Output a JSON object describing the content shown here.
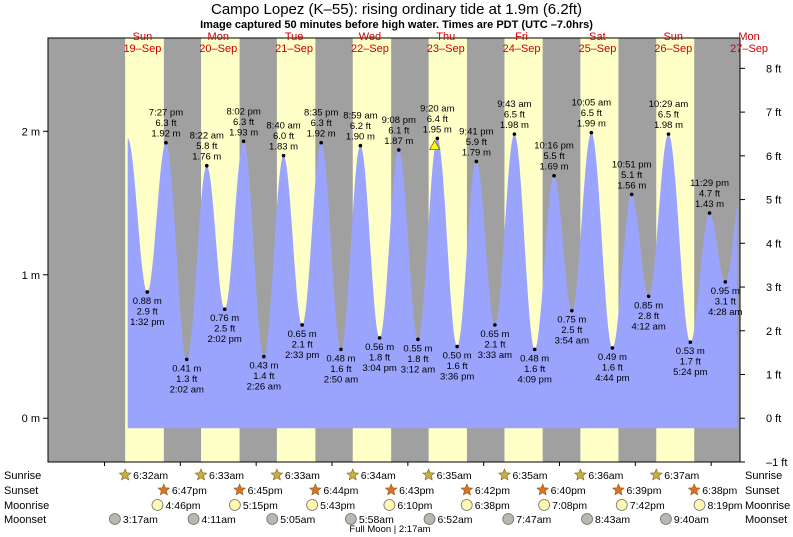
{
  "title": "Campo Lopez (K–55): rising  ordinary tide at 1.9m (6.2ft)",
  "subtitle": "Image captured 50 minutes before high water. Times are PDT (UTC –7.0hrs)",
  "colors": {
    "night": "#a0a0a0",
    "day": "#ffffc8",
    "tide": "#9aa4fc",
    "weekday": "#cc0000",
    "sun_star": "#c8b040",
    "sunset_star": "#e07020",
    "moonrise": "#fff8b0",
    "moonset": "#b8b8b0",
    "marker": "#ffff00"
  },
  "days": [
    {
      "day": "Sun",
      "date": "19–Sep"
    },
    {
      "day": "Mon",
      "date": "20–Sep"
    },
    {
      "day": "Tue",
      "date": "21–Sep"
    },
    {
      "day": "Wed",
      "date": "22–Sep"
    },
    {
      "day": "Thu",
      "date": "23–Sep"
    },
    {
      "day": "Fri",
      "date": "24–Sep"
    },
    {
      "day": "Sat",
      "date": "25–Sep"
    },
    {
      "day": "Sun",
      "date": "26–Sep"
    },
    {
      "day": "Mon",
      "date": "27–Sep"
    }
  ],
  "chart_data": {
    "type": "area",
    "x_unit": "hours from 19-Sep 00:00 PDT",
    "y_left": {
      "unit": "m",
      "ticks": [
        {
          "v": 0,
          "label": "0 m"
        },
        {
          "v": 1,
          "label": "1 m"
        },
        {
          "v": 2,
          "label": "2 m"
        }
      ]
    },
    "y_right": {
      "unit": "ft",
      "ticks": [
        "–1 ft",
        "0 ft",
        "1 ft",
        "2 ft",
        "3 ft",
        "4 ft",
        "5 ft",
        "6 ft",
        "7 ft",
        "8 ft"
      ]
    },
    "ylim_m": [
      -0.305,
      2.65
    ],
    "xlim_h": [
      -17.88,
      201.12
    ],
    "extremes": [
      {
        "h": 13.53,
        "m": 0.88,
        "ft": "2.9 ft",
        "time": "1:32 pm",
        "type": "low"
      },
      {
        "h": 19.45,
        "m": 1.92,
        "ft": "6.3 ft",
        "time": "7:27 pm",
        "type": "high"
      },
      {
        "h": 26.03,
        "m": 0.41,
        "ft": "1.3 ft",
        "time": "2:02 am",
        "type": "low"
      },
      {
        "h": 32.37,
        "m": 1.76,
        "ft": "5.8 ft",
        "time": "8:22 am",
        "type": "high"
      },
      {
        "h": 38.03,
        "m": 0.76,
        "ft": "2.5 ft",
        "time": "2:02 pm",
        "type": "low"
      },
      {
        "h": 44.03,
        "m": 1.93,
        "ft": "6.3 ft",
        "time": "8:02 pm",
        "type": "high"
      },
      {
        "h": 50.43,
        "m": 0.43,
        "ft": "1.4 ft",
        "time": "2:26 am",
        "type": "low"
      },
      {
        "h": 56.67,
        "m": 1.83,
        "ft": "6.0 ft",
        "time": "8:40 am",
        "type": "high"
      },
      {
        "h": 62.55,
        "m": 0.65,
        "ft": "2.1 ft",
        "time": "2:33 pm",
        "type": "low"
      },
      {
        "h": 68.58,
        "m": 1.92,
        "ft": "6.3 ft",
        "time": "8:35 pm",
        "type": "high"
      },
      {
        "h": 74.83,
        "m": 0.48,
        "ft": "1.6 ft",
        "time": "2:50 am",
        "type": "low"
      },
      {
        "h": 80.98,
        "m": 1.9,
        "ft": "6.2 ft",
        "time": "8:59 am",
        "type": "high"
      },
      {
        "h": 87.07,
        "m": 0.56,
        "ft": "1.8 ft",
        "time": "3:04 pm",
        "type": "low"
      },
      {
        "h": 93.13,
        "m": 1.87,
        "ft": "6.1 ft",
        "time": "9:08 pm",
        "type": "high"
      },
      {
        "h": 99.2,
        "m": 0.55,
        "ft": "1.8 ft",
        "time": "3:12 am",
        "type": "low"
      },
      {
        "h": 105.33,
        "m": 1.95,
        "ft": "6.4 ft",
        "time": "9:20 am",
        "type": "high"
      },
      {
        "h": 111.6,
        "m": 0.5,
        "ft": "1.6 ft",
        "time": "3:36 pm",
        "type": "low"
      },
      {
        "h": 117.68,
        "m": 1.79,
        "ft": "5.9 ft",
        "time": "9:41 pm",
        "type": "high"
      },
      {
        "h": 123.55,
        "m": 0.65,
        "ft": "2.1 ft",
        "time": "3:33 am",
        "type": "low"
      },
      {
        "h": 129.72,
        "m": 1.98,
        "ft": "6.5 ft",
        "time": "9:43 am",
        "type": "high"
      },
      {
        "h": 136.15,
        "m": 0.48,
        "ft": "1.6 ft",
        "time": "4:09 pm",
        "type": "low"
      },
      {
        "h": 142.27,
        "m": 1.69,
        "ft": "5.5 ft",
        "time": "10:16 pm",
        "type": "high"
      },
      {
        "h": 147.9,
        "m": 0.75,
        "ft": "2.5 ft",
        "time": "3:54 am",
        "type": "low"
      },
      {
        "h": 154.08,
        "m": 1.99,
        "ft": "6.5 ft",
        "time": "10:05 am",
        "type": "high"
      },
      {
        "h": 160.73,
        "m": 0.49,
        "ft": "1.6 ft",
        "time": "4:44 pm",
        "type": "low"
      },
      {
        "h": 166.85,
        "m": 1.56,
        "ft": "5.1 ft",
        "time": "10:51 pm",
        "type": "high"
      },
      {
        "h": 172.2,
        "m": 0.85,
        "ft": "2.8 ft",
        "time": "4:12 am",
        "type": "low"
      },
      {
        "h": 178.48,
        "m": 1.98,
        "ft": "6.5 ft",
        "time": "10:29 am",
        "type": "high"
      },
      {
        "h": 185.4,
        "m": 0.53,
        "ft": "1.7 ft",
        "time": "5:24 pm",
        "type": "low"
      },
      {
        "h": 191.48,
        "m": 1.43,
        "ft": "4.7 ft",
        "time": "11:29 pm",
        "type": "high"
      },
      {
        "h": 196.47,
        "m": 0.95,
        "ft": "3.1 ft",
        "time": "4:28 am",
        "type": "low"
      }
    ],
    "now": {
      "h": 104.5,
      "m": 1.9
    }
  },
  "rows": {
    "labels": {
      "sunrise": "Sunrise",
      "sunset": "Sunset",
      "moonrise": "Moonrise",
      "moonset": "Moonset"
    },
    "sunrise": [
      "6:32am",
      "6:33am",
      "6:33am",
      "6:34am",
      "6:35am",
      "6:35am",
      "6:36am",
      "6:37am"
    ],
    "sunset": [
      "6:47pm",
      "6:45pm",
      "6:44pm",
      "6:43pm",
      "6:42pm",
      "6:40pm",
      "6:39pm",
      "6:38pm"
    ],
    "moonrise": [
      "4:46pm",
      "5:15pm",
      "5:43pm",
      "6:10pm",
      "6:38pm",
      "7:08pm",
      "7:42pm",
      "8:19pm"
    ],
    "moonset": [
      "3:17am",
      "4:11am",
      "5:05am",
      "5:58am",
      "6:52am",
      "7:47am",
      "8:43am",
      "9:40am"
    ],
    "full_moon": "Full Moon | 2:17am"
  }
}
